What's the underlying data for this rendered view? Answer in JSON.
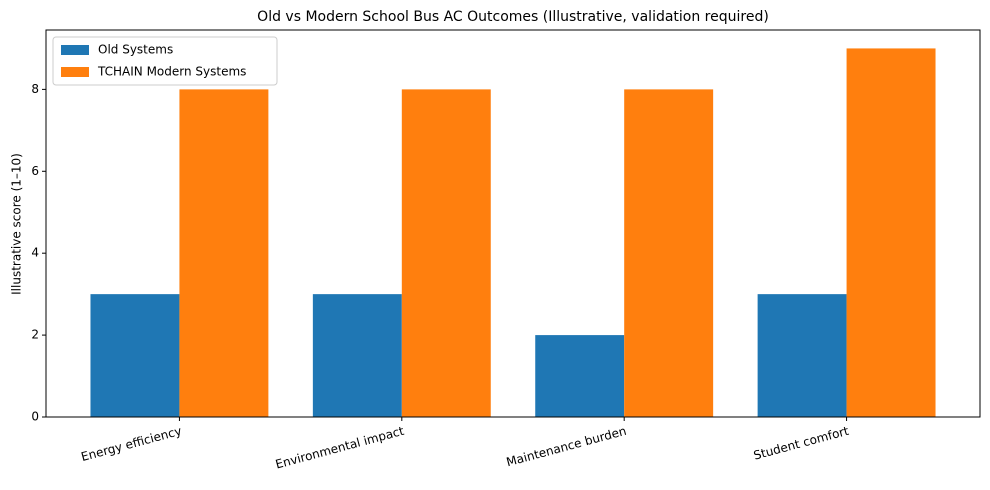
{
  "chart_data": {
    "type": "bar",
    "title": "Old vs Modern School Bus AC Outcomes (Illustrative, validation required)",
    "y_label": "Illustrative score (1–10)",
    "categories": [
      "Energy efficiency",
      "Environmental impact",
      "Maintenance burden",
      "Student comfort"
    ],
    "series": [
      {
        "name": "Old Systems",
        "color": "#1f77b4",
        "values": [
          3,
          3,
          2,
          3
        ]
      },
      {
        "name": "TCHAIN Modern Systems",
        "color": "#ff7f0e",
        "values": [
          8,
          8,
          8,
          9
        ]
      }
    ],
    "ylim": [
      0,
      9.45
    ],
    "yticks": [
      0,
      2,
      4,
      6,
      8
    ],
    "grid": false,
    "legend": "upper-left"
  }
}
